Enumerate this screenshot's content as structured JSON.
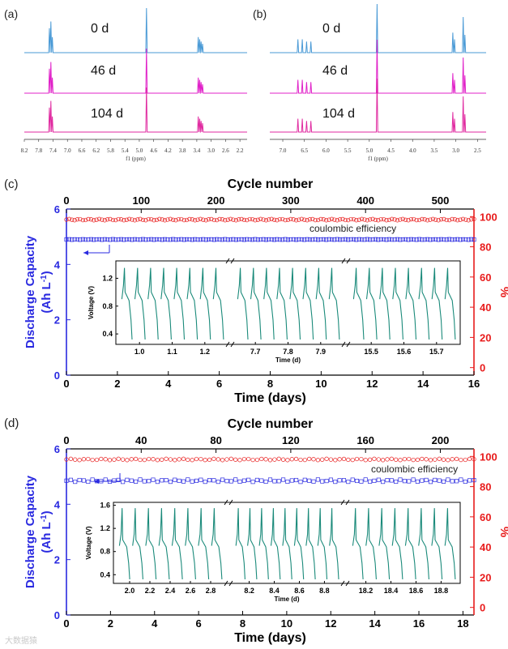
{
  "nmr_panels": [
    {
      "letter": "(a)",
      "xlabel": "f1 (ppm)",
      "ticks": [
        "8.2",
        "7.8",
        "7.4",
        "7.0",
        "6.6",
        "6.2",
        "5.8",
        "5.4",
        "5.0",
        "4.6",
        "4.2",
        "3.8",
        "3.4",
        "3.0",
        "2.6",
        "2.2"
      ],
      "x_range": [
        8.2,
        2.0
      ],
      "traces": [
        {
          "label": "0 d",
          "color": "#4a9ad6"
        },
        {
          "label": "46 d",
          "color": "#e020c8"
        },
        {
          "label": "104 d",
          "color": "#e02aa0"
        }
      ],
      "peaks": [
        {
          "ppm": 7.5,
          "h": 0.55
        },
        {
          "ppm": 7.46,
          "h": 0.7
        },
        {
          "ppm": 7.42,
          "h": 0.35
        },
        {
          "ppm": 4.8,
          "h": 1.0
        },
        {
          "ppm": 3.36,
          "h": 0.35
        },
        {
          "ppm": 3.32,
          "h": 0.3
        },
        {
          "ppm": 3.28,
          "h": 0.25
        },
        {
          "ppm": 3.24,
          "h": 0.2
        }
      ]
    },
    {
      "letter": "(b)",
      "xlabel": "f1 (ppm)",
      "ticks": [
        "7.0",
        "6.5",
        "6.0",
        "5.5",
        "5.0",
        "4.5",
        "4.0",
        "3.5",
        "3.0",
        "2.5"
      ],
      "x_range": [
        7.3,
        2.3
      ],
      "traces": [
        {
          "label": "0 d",
          "color": "#4a9ad6"
        },
        {
          "label": "46 d",
          "color": "#e020c8"
        },
        {
          "label": "104 d",
          "color": "#e02aa0"
        }
      ],
      "peaks": [
        {
          "ppm": 6.65,
          "h": 0.3
        },
        {
          "ppm": 6.55,
          "h": 0.3
        },
        {
          "ppm": 6.45,
          "h": 0.25
        },
        {
          "ppm": 6.35,
          "h": 0.25
        },
        {
          "ppm": 4.82,
          "h": 1.2
        },
        {
          "ppm": 3.07,
          "h": 0.45
        },
        {
          "ppm": 3.03,
          "h": 0.3
        },
        {
          "ppm": 2.83,
          "h": 0.8
        },
        {
          "ppm": 2.79,
          "h": 0.4
        }
      ]
    }
  ],
  "cycle_panels": [
    {
      "letter": "(c)",
      "top_label": "Cycle number",
      "top_ticks": [
        "0",
        "100",
        "200",
        "300",
        "400",
        "500"
      ],
      "top_max_cycles": 545,
      "xlabel": "Time (days)",
      "xticks": [
        "0",
        "2",
        "4",
        "6",
        "8",
        "10",
        "12",
        "14",
        "16"
      ],
      "xmax": 16,
      "left_label_line1": "Discharge Capacity",
      "left_label_line2": "(Ah L",
      "left_label_sup": "-1",
      "left_label_end": ")",
      "left_ticks": [
        "0",
        "2",
        "4",
        "6"
      ],
      "right_label": "%",
      "right_ticks": [
        "0",
        "20",
        "40",
        "60",
        "80",
        "100"
      ],
      "efficiency_label": "coulombic efficiency",
      "capacity_value": 4.9,
      "efficiency_value": 98,
      "inset": {
        "ylabel": "Voltage (V)",
        "yticks": [
          "0.4",
          "0.8",
          "1.2"
        ],
        "xlabel": "Time (d)",
        "segments": [
          {
            "ticks": [
              "1.0",
              "1.1",
              "1.2"
            ],
            "cycles": 8
          },
          {
            "ticks": [
              "7.7",
              "7.8",
              "7.9"
            ],
            "cycles": 8
          },
          {
            "ticks": [
              "15.5",
              "15.6",
              "15.7"
            ],
            "cycles": 8
          }
        ]
      }
    },
    {
      "letter": "(d)",
      "top_label": "Cycle number",
      "top_ticks": [
        "0",
        "40",
        "80",
        "120",
        "160",
        "200"
      ],
      "top_max_cycles": 218,
      "xlabel": "Time (days)",
      "xticks": [
        "0",
        "2",
        "4",
        "6",
        "8",
        "10",
        "12",
        "14",
        "16",
        "18"
      ],
      "xmax": 18.5,
      "left_label_line1": "Discharge Capacity",
      "left_label_line2": "(Ah L",
      "left_label_sup": "-1",
      "left_label_end": ")",
      "left_ticks": [
        "0",
        "2",
        "4",
        "6"
      ],
      "right_label": "%",
      "right_ticks": [
        "0",
        "20",
        "40",
        "60",
        "80",
        "100"
      ],
      "efficiency_label": "coulombic efficiency",
      "capacity_value": 4.85,
      "efficiency_value": 98,
      "inset": {
        "ylabel": "Voltage (V)",
        "yticks": [
          "0.4",
          "0.8",
          "1.2",
          "1.6"
        ],
        "xlabel": "Time (d)",
        "segments": [
          {
            "ticks": [
              "2.0",
              "2.2",
              "2.4",
              "2.6",
              "2.8"
            ],
            "cycles": 8
          },
          {
            "ticks": [
              "8.2",
              "8.4",
              "8.6",
              "8.8"
            ],
            "cycles": 9
          },
          {
            "ticks": [
              "18.2",
              "18.4",
              "18.6",
              "18.8"
            ],
            "cycles": 8
          }
        ]
      }
    }
  ],
  "chart_data": [
    {
      "type": "line",
      "title": "",
      "xlabel": "f1 (ppm)",
      "series": [
        {
          "name": "0 d"
        },
        {
          "name": "46 d"
        },
        {
          "name": "104 d"
        }
      ]
    },
    {
      "type": "line",
      "title": "",
      "xlabel": "f1 (ppm)",
      "series": [
        {
          "name": "0 d"
        },
        {
          "name": "46 d"
        },
        {
          "name": "104 d"
        }
      ]
    },
    {
      "type": "scatter",
      "xlabel": "Time (days)",
      "ylabel": "Discharge Capacity (Ah L-1)",
      "x2label": "Cycle number",
      "y2label": "%",
      "xlim": [
        0,
        16
      ],
      "ylim": [
        0,
        6
      ],
      "y2lim": [
        -5,
        105
      ],
      "series": [
        {
          "name": "coulombic efficiency",
          "value": 98
        },
        {
          "name": "",
          "value": 4.9
        }
      ]
    },
    {
      "type": "scatter",
      "xlabel": "Time (days)",
      "ylabel": "Discharge Capacity (Ah L-1)",
      "x2label": "Cycle number",
      "y2label": "%",
      "xlim": [
        0,
        18.5
      ],
      "ylim": [
        0,
        6
      ],
      "y2lim": [
        -5,
        105
      ],
      "series": [
        {
          "name": "coulombic efficiency",
          "value": 98
        },
        {
          "name": "",
          "value": 4.85
        }
      ]
    }
  ],
  "watermark": "大数据猿"
}
